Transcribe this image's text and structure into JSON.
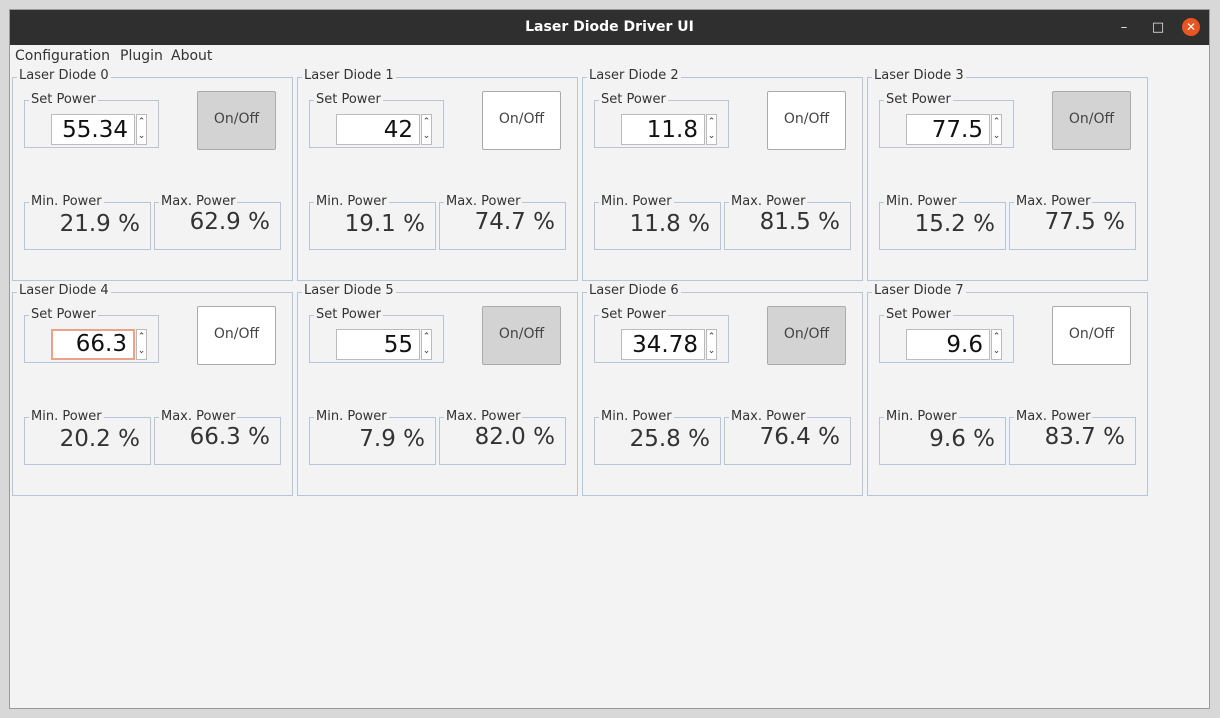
{
  "window": {
    "title": "Laser Diode Driver UI"
  },
  "menu": [
    "Configuration",
    "Plugin",
    "About"
  ],
  "labels": {
    "set_power": "Set Power",
    "min_power": "Min. Power",
    "max_power": "Max. Power",
    "onoff": "On/Off"
  },
  "diodes": [
    {
      "name": "Laser Diode 0",
      "set_power": "55.34",
      "min_power": "21.9 %",
      "max_power": "62.9 %",
      "on": true
    },
    {
      "name": "Laser Diode 1",
      "set_power": "42",
      "min_power": "19.1 %",
      "max_power": "74.7 %",
      "on": false
    },
    {
      "name": "Laser Diode 2",
      "set_power": "11.8",
      "min_power": "11.8 %",
      "max_power": "81.5 %",
      "on": false
    },
    {
      "name": "Laser Diode 3",
      "set_power": "77.5",
      "min_power": "15.2 %",
      "max_power": "77.5 %",
      "on": true
    },
    {
      "name": "Laser Diode 4",
      "set_power": "66.3",
      "min_power": "20.2 %",
      "max_power": "66.3 %",
      "on": false,
      "focused": true
    },
    {
      "name": "Laser Diode 5",
      "set_power": "55",
      "min_power": "7.9 %",
      "max_power": "82.0 %",
      "on": true
    },
    {
      "name": "Laser Diode 6",
      "set_power": "34.78",
      "min_power": "25.8 %",
      "max_power": "76.4 %",
      "on": true
    },
    {
      "name": "Laser Diode 7",
      "set_power": "9.6",
      "min_power": "9.6 %",
      "max_power": "83.7 %",
      "on": false
    }
  ],
  "colors": {
    "titlebar": "#2f2f2f",
    "close": "#e95420",
    "on_state": "#d3d3d3",
    "focus": "#e9a487"
  }
}
